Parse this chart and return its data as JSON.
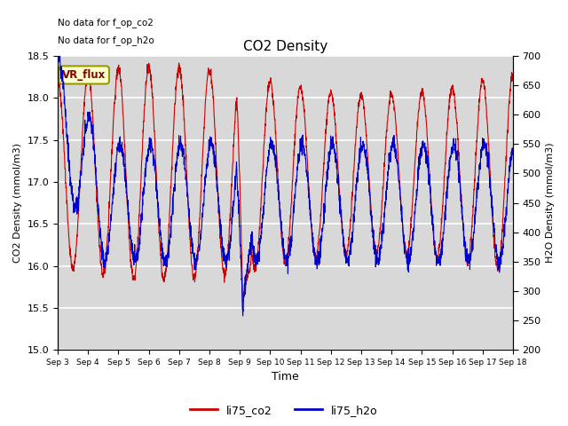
{
  "title": "CO2 Density",
  "xlabel": "Time",
  "ylabel_left": "CO2 Density (mmol/m3)",
  "ylabel_right": "H2O Density (mmol/m3)",
  "ylim_left": [
    15.0,
    18.5
  ],
  "ylim_right": [
    200,
    700
  ],
  "xtick_labels": [
    "Sep 3",
    "Sep 4",
    "Sep 5",
    "Sep 6",
    "Sep 7",
    "Sep 8",
    "Sep 9",
    "Sep 10",
    "Sep 11",
    "Sep 12",
    "Sep 13",
    "Sep 14",
    "Sep 15",
    "Sep 16",
    "Sep 17",
    "Sep 18"
  ],
  "top_text_1": "No data for f_op_co2",
  "top_text_2": "No data for f_op_h2o",
  "box_label": "VR_flux",
  "box_color": "#ffffcc",
  "box_edge_color": "#999900",
  "legend_labels": [
    "li75_co2",
    "li75_h2o"
  ],
  "color_co2": "#cc0000",
  "color_h2o": "#0000cc",
  "background_color": "#ffffff",
  "plot_bg_color": "#d8d8d8",
  "grid_color": "#ffffff",
  "figsize": [
    6.4,
    4.8
  ],
  "dpi": 100
}
